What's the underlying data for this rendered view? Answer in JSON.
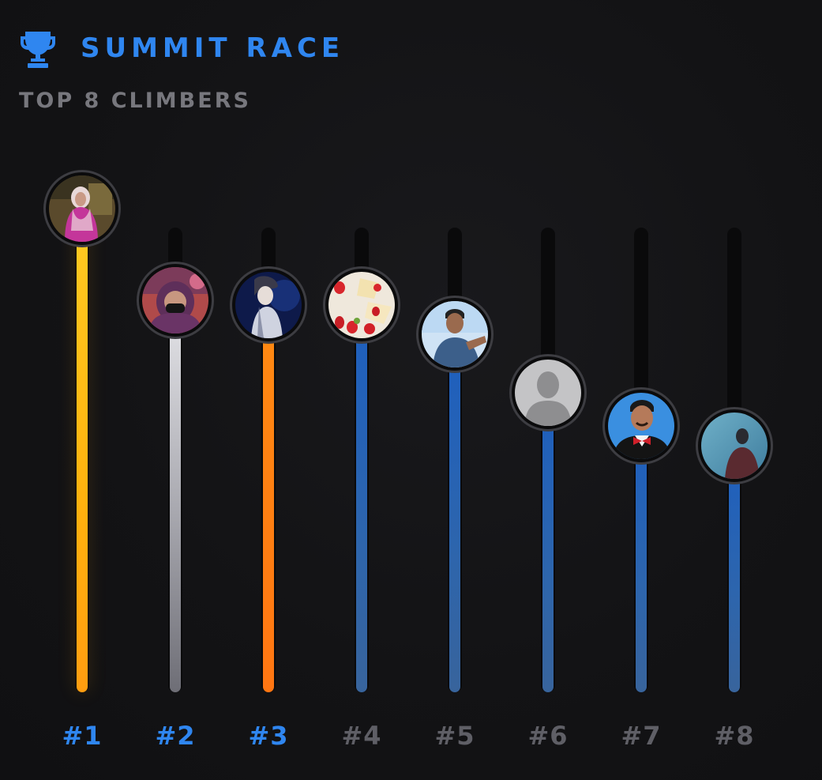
{
  "header": {
    "title": "SUMMIT RACE",
    "subtitle": "TOP 8 CLIMBERS",
    "icon": "trophy-icon"
  },
  "colors": {
    "accent": "#2f86f0",
    "rank_muted": "#5f5f66",
    "gold": "#ffb20e",
    "silver": "#c8c8cd",
    "bronze": "#ff7a12",
    "blue": "#2a62b0"
  },
  "climbers": [
    {
      "rank": "#1",
      "progress": 1.0,
      "tier": "gold",
      "avatar": "photo-woman-pink-hijab"
    },
    {
      "rank": "#2",
      "progress": 0.81,
      "tier": "silver",
      "avatar": "photo-woman-purple-hijab"
    },
    {
      "rank": "#3",
      "progress": 0.8,
      "tier": "bronze",
      "avatar": "anime-character"
    },
    {
      "rank": "#4",
      "progress": 0.8,
      "tier": "blue",
      "avatar": "photo-strawberries"
    },
    {
      "rank": "#5",
      "progress": 0.74,
      "tier": "blue",
      "avatar": "photo-man-sky"
    },
    {
      "rank": "#6",
      "progress": 0.62,
      "tier": "blue",
      "avatar": "default-user-icon"
    },
    {
      "rank": "#7",
      "progress": 0.55,
      "tier": "blue",
      "avatar": "photo-man-bowtie"
    },
    {
      "rank": "#8",
      "progress": 0.51,
      "tier": "blue",
      "avatar": "photo-silhouette-sky"
    }
  ]
}
